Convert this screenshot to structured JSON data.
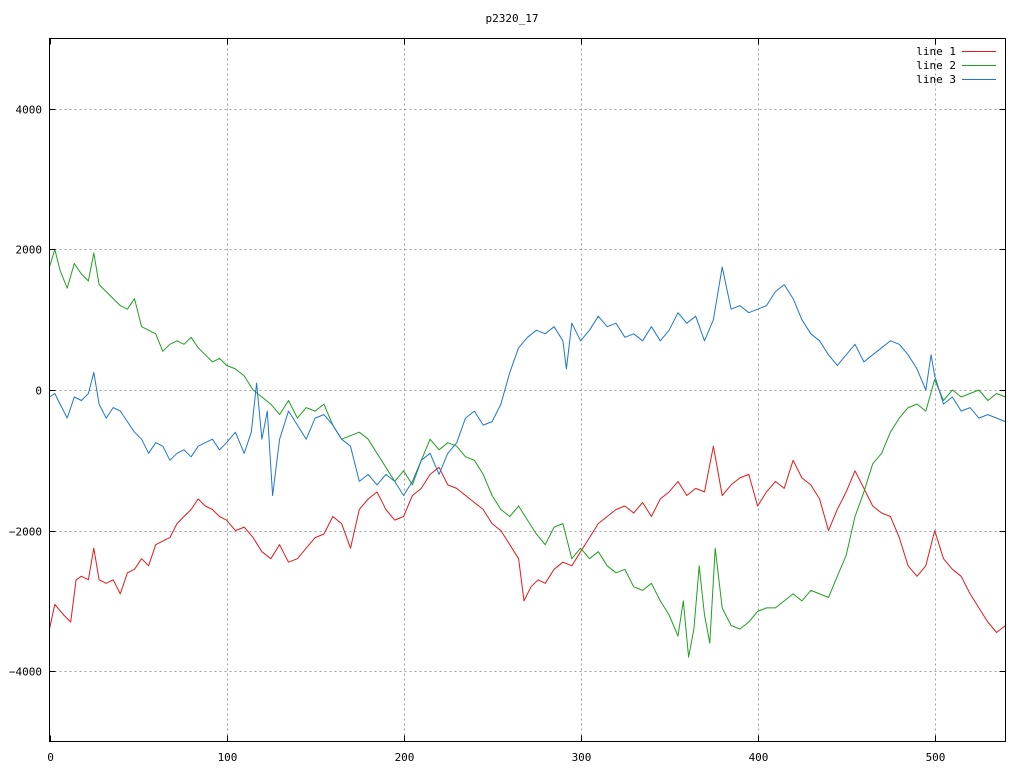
{
  "chart_data": {
    "type": "line",
    "title": "p2320_17",
    "xlabel": "",
    "ylabel": "",
    "xlim": [
      0,
      540
    ],
    "ylim": [
      -5000,
      5000
    ],
    "xticks": [
      0,
      100,
      200,
      300,
      400,
      500
    ],
    "yticks": [
      -4000,
      -2000,
      0,
      2000,
      4000
    ],
    "grid": true,
    "legend_position": "top-right",
    "series": [
      {
        "name": "line 1",
        "color": "#e41a1c",
        "x": [
          0,
          3,
          8,
          12,
          15,
          18,
          22,
          25,
          28,
          32,
          36,
          40,
          44,
          48,
          52,
          56,
          60,
          64,
          68,
          72,
          76,
          80,
          84,
          88,
          92,
          96,
          100,
          105,
          110,
          115,
          120,
          125,
          130,
          135,
          140,
          145,
          150,
          155,
          160,
          165,
          170,
          175,
          180,
          185,
          190,
          195,
          200,
          205,
          210,
          215,
          220,
          225,
          230,
          235,
          240,
          245,
          250,
          255,
          260,
          265,
          268,
          272,
          276,
          280,
          285,
          290,
          295,
          300,
          305,
          310,
          315,
          320,
          325,
          330,
          335,
          340,
          345,
          350,
          355,
          360,
          365,
          370,
          375,
          380,
          385,
          390,
          395,
          400,
          405,
          410,
          415,
          420,
          425,
          430,
          435,
          440,
          445,
          450,
          455,
          460,
          465,
          470,
          475,
          480,
          485,
          490,
          495,
          500,
          505,
          510,
          515,
          520,
          525,
          530,
          535,
          540
        ],
        "y": [
          -3400,
          -3050,
          -3200,
          -3300,
          -2700,
          -2650,
          -2700,
          -2250,
          -2700,
          -2750,
          -2700,
          -2900,
          -2600,
          -2550,
          -2400,
          -2500,
          -2200,
          -2150,
          -2100,
          -1900,
          -1800,
          -1700,
          -1550,
          -1650,
          -1700,
          -1800,
          -1850,
          -2000,
          -1950,
          -2100,
          -2300,
          -2400,
          -2200,
          -2450,
          -2400,
          -2250,
          -2100,
          -2050,
          -1800,
          -1900,
          -2250,
          -1700,
          -1550,
          -1450,
          -1700,
          -1850,
          -1800,
          -1500,
          -1400,
          -1200,
          -1100,
          -1350,
          -1400,
          -1500,
          -1600,
          -1700,
          -1900,
          -2000,
          -2200,
          -2400,
          -3000,
          -2800,
          -2700,
          -2750,
          -2550,
          -2450,
          -2500,
          -2300,
          -2100,
          -1900,
          -1800,
          -1700,
          -1650,
          -1750,
          -1600,
          -1800,
          -1550,
          -1450,
          -1300,
          -1500,
          -1400,
          -1450,
          -800,
          -1500,
          -1350,
          -1250,
          -1200,
          -1650,
          -1450,
          -1300,
          -1400,
          -1000,
          -1250,
          -1350,
          -1550,
          -2000,
          -1700,
          -1450,
          -1150,
          -1400,
          -1650,
          -1750,
          -1800,
          -2100,
          -2500,
          -2650,
          -2500,
          -2000,
          -2400,
          -2550,
          -2650,
          -2900,
          -3100,
          -3300,
          -3450,
          -3350
        ],
        "label_pos": 0
      },
      {
        "name": "line 2",
        "color": "#1fa01f",
        "x": [
          0,
          3,
          6,
          10,
          14,
          18,
          22,
          25,
          28,
          32,
          36,
          40,
          44,
          48,
          52,
          56,
          60,
          64,
          68,
          72,
          76,
          80,
          84,
          88,
          92,
          96,
          100,
          105,
          110,
          115,
          120,
          125,
          130,
          135,
          140,
          145,
          150,
          155,
          160,
          165,
          170,
          175,
          180,
          185,
          190,
          195,
          200,
          205,
          210,
          215,
          220,
          225,
          230,
          235,
          240,
          245,
          250,
          255,
          260,
          265,
          270,
          275,
          280,
          285,
          290,
          295,
          300,
          305,
          310,
          315,
          320,
          325,
          330,
          335,
          340,
          345,
          350,
          355,
          358,
          361,
          364,
          367,
          370,
          373,
          376,
          380,
          385,
          390,
          395,
          400,
          405,
          410,
          415,
          420,
          425,
          430,
          435,
          440,
          445,
          450,
          455,
          460,
          465,
          470,
          475,
          480,
          485,
          490,
          495,
          500,
          505,
          510,
          515,
          520,
          525,
          530,
          535,
          540
        ],
        "y": [
          1750,
          2000,
          1700,
          1450,
          1800,
          1650,
          1550,
          1950,
          1500,
          1400,
          1300,
          1200,
          1150,
          1300,
          900,
          850,
          800,
          550,
          650,
          700,
          650,
          750,
          600,
          500,
          400,
          450,
          350,
          300,
          200,
          0,
          -100,
          -200,
          -350,
          -150,
          -400,
          -250,
          -300,
          -200,
          -500,
          -700,
          -650,
          -600,
          -700,
          -900,
          -1100,
          -1300,
          -1150,
          -1350,
          -1000,
          -700,
          -850,
          -750,
          -800,
          -950,
          -1000,
          -1200,
          -1500,
          -1700,
          -1800,
          -1650,
          -1850,
          -2050,
          -2200,
          -1950,
          -1900,
          -2400,
          -2250,
          -2400,
          -2300,
          -2500,
          -2600,
          -2550,
          -2800,
          -2850,
          -2750,
          -3000,
          -3200,
          -3500,
          -3000,
          -3800,
          -3400,
          -2500,
          -3200,
          -3600,
          -2250,
          -3100,
          -3350,
          -3400,
          -3300,
          -3150,
          -3100,
          -3100,
          -3000,
          -2900,
          -3000,
          -2850,
          -2900,
          -2950,
          -2650,
          -2350,
          -1800,
          -1450,
          -1050,
          -900,
          -600,
          -400,
          -250,
          -200,
          -300,
          150,
          -150,
          0,
          -100,
          -50,
          0,
          -150,
          -50,
          -100
        ],
        "label_pos": 1
      },
      {
        "name": "line 3",
        "color": "#1f77d0",
        "x": [
          0,
          3,
          6,
          10,
          14,
          18,
          22,
          25,
          28,
          32,
          36,
          40,
          44,
          48,
          52,
          56,
          60,
          64,
          68,
          72,
          76,
          80,
          84,
          88,
          92,
          96,
          100,
          105,
          110,
          114,
          117,
          120,
          123,
          126,
          130,
          135,
          140,
          145,
          150,
          155,
          160,
          165,
          170,
          175,
          180,
          185,
          190,
          195,
          200,
          205,
          210,
          215,
          220,
          225,
          230,
          235,
          240,
          245,
          250,
          255,
          260,
          265,
          270,
          275,
          280,
          285,
          290,
          292,
          295,
          300,
          305,
          310,
          315,
          320,
          325,
          330,
          335,
          340,
          345,
          350,
          355,
          360,
          365,
          370,
          375,
          380,
          385,
          390,
          395,
          400,
          405,
          410,
          415,
          420,
          425,
          430,
          435,
          440,
          445,
          450,
          455,
          460,
          465,
          470,
          475,
          480,
          485,
          490,
          495,
          498,
          500,
          505,
          510,
          515,
          520,
          525,
          530,
          535,
          540
        ],
        "y": [
          -100,
          -50,
          -200,
          -400,
          -100,
          -150,
          -50,
          250,
          -200,
          -400,
          -250,
          -300,
          -450,
          -600,
          -700,
          -900,
          -750,
          -800,
          -1000,
          -900,
          -850,
          -950,
          -800,
          -750,
          -700,
          -850,
          -750,
          -600,
          -900,
          -600,
          100,
          -700,
          -300,
          -1500,
          -700,
          -300,
          -500,
          -700,
          -400,
          -350,
          -500,
          -700,
          -800,
          -1300,
          -1200,
          -1350,
          -1200,
          -1300,
          -1500,
          -1300,
          -1000,
          -900,
          -1200,
          -900,
          -750,
          -400,
          -300,
          -500,
          -450,
          -200,
          250,
          600,
          750,
          850,
          800,
          900,
          700,
          300,
          950,
          700,
          850,
          1050,
          900,
          950,
          750,
          800,
          700,
          900,
          700,
          850,
          1100,
          950,
          1050,
          700,
          1000,
          1750,
          1150,
          1200,
          1100,
          1150,
          1200,
          1400,
          1500,
          1300,
          1000,
          800,
          700,
          500,
          350,
          500,
          650,
          400,
          500,
          600,
          700,
          650,
          500,
          300,
          0,
          500,
          200,
          -200,
          -100,
          -300,
          -250,
          -400,
          -350,
          -400,
          -450
        ],
        "label_pos": 2
      }
    ]
  }
}
